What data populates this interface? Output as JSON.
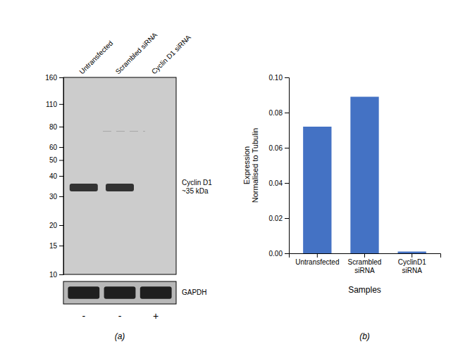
{
  "chart_data": [
    {
      "type": "western_blot",
      "categories": [
        "Untransfected",
        "Scrambled siRNA",
        "Cyclin D1 siRNA"
      ],
      "ylim": [
        10,
        160
      ],
      "yticks": [
        160,
        110,
        80,
        60,
        50,
        40,
        30,
        20,
        15,
        10
      ],
      "log": "y",
      "band_kda": [
        34,
        34,
        null
      ],
      "faint_kda": [
        null,
        75,
        null
      ],
      "band_label": "Cyclin D1\n~35 kDa",
      "control_label": "GAPDH",
      "lane_signs": [
        "-",
        "-",
        "+"
      ],
      "panel_label": "(a)"
    },
    {
      "type": "bar",
      "categories": [
        "Untransfected",
        "Scrambled\nsiRNA",
        "CyclinD1\nsiRNA"
      ],
      "values": [
        0.072,
        0.089,
        0.001
      ],
      "color": "#4472c4",
      "ylim": [
        0,
        0.1
      ],
      "yticks": [
        {
          "value": 0.0,
          "label": "0.00"
        },
        0.02,
        0.04,
        0.06,
        0.08,
        {
          "value": 0.1,
          "label": "0.10"
        }
      ],
      "ylabel": "Expression\nNormalised to Tubulin",
      "xlabel": "Samples",
      "panel_label": "(b)"
    }
  ]
}
